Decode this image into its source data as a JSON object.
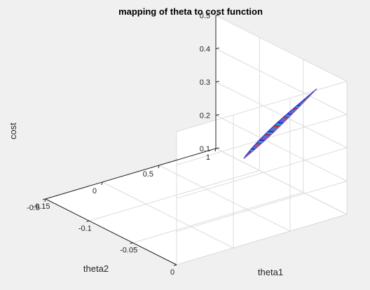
{
  "window": {
    "background": "#f0f0f0"
  },
  "chart_data": {
    "type": "surface",
    "title": "mapping of theta to cost function",
    "xlabel": "theta1",
    "ylabel": "theta2",
    "zlabel": "cost",
    "xlim": [
      -0.15,
      0
    ],
    "ylim": [
      -0.5,
      1
    ],
    "zlim": [
      0.1,
      0.5
    ],
    "xticks": [
      -0.15,
      -0.1,
      -0.05,
      0
    ],
    "yticks": [
      -0.5,
      0,
      0.5,
      1
    ],
    "zticks": [
      0.1,
      0.2,
      0.3,
      0.4,
      0.5
    ],
    "xtick_labels": [
      "-0.15",
      "-0.1",
      "-0.05",
      "0"
    ],
    "ytick_labels": [
      "-0.5",
      "0",
      "0.5",
      "1"
    ],
    "ztick_labels": [
      "0.1",
      "0.2",
      "0.3",
      "0.4",
      "0.5"
    ],
    "grid": true,
    "colormap": [
      "#2a2ad6",
      "#3a7de0",
      "#29b0c8",
      "#8a50b0",
      "#c03a3a"
    ],
    "surface": {
      "start": {
        "theta1": -0.118,
        "theta2": 1.0,
        "cost": 0.112
      },
      "end": {
        "theta1": -0.002,
        "theta2": 0.75,
        "cost": 0.5
      }
    }
  }
}
